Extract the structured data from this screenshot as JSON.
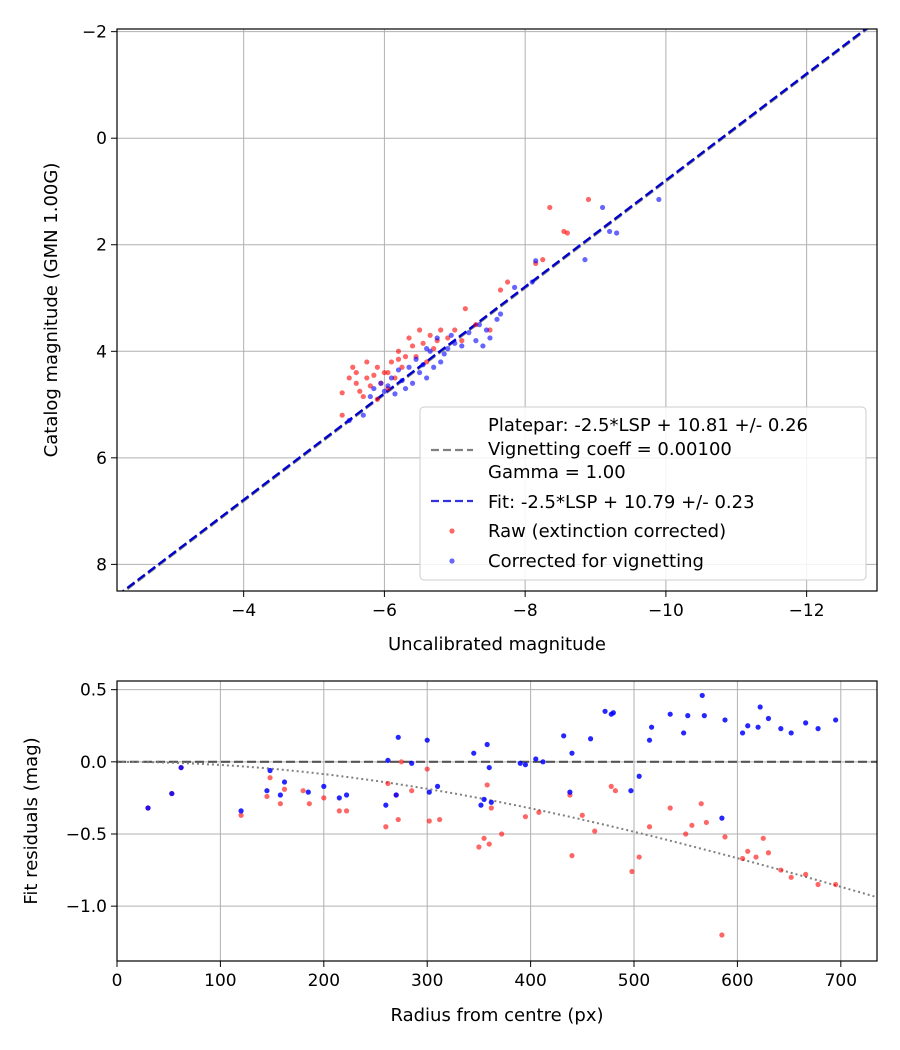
{
  "chart_data": [
    {
      "type": "scatter",
      "title": "",
      "xlabel": "Uncalibrated magnitude",
      "ylabel": "Catalog magnitude (GMN 1.00G)",
      "xlim": [
        -2.2,
        -13.0
      ],
      "ylim": [
        8.5,
        -2.05
      ],
      "x_inverted": true,
      "y_inverted": true,
      "xticks": [
        -4,
        -6,
        -8,
        -10,
        -12
      ],
      "yticks": [
        -2,
        0,
        2,
        4,
        6,
        8
      ],
      "xtick_labels": [
        "−4",
        "−6",
        "−8",
        "−10",
        "−12"
      ],
      "ytick_labels": [
        "−2",
        "0",
        "2",
        "4",
        "6",
        "8"
      ],
      "grid": true,
      "legend_position": "lower-right",
      "legend": {
        "platepar_line1": "Platepar: -2.5*LSP + 10.81 +/- 0.26",
        "platepar_line2": "Vignetting coeff = 0.00100",
        "platepar_line3": "Gamma = 1.00",
        "fit_label": "Fit: -2.5*LSP + 10.79 +/- 0.23",
        "raw_label": "Raw (extinction corrected)",
        "corrected_label": "Corrected for vignetting"
      },
      "colors": {
        "raw": "#ff0000",
        "corrected": "#0000ff",
        "fit": "#0000cc",
        "platepar": "#808080"
      },
      "lines": {
        "platepar": {
          "slope": 1,
          "intercept": 10.81,
          "style": "dashed"
        },
        "fit": {
          "slope": 1,
          "intercept": 10.79,
          "style": "dashed"
        }
      },
      "series": [
        {
          "name": "Raw (extinction corrected)",
          "points": [
            [
              -5.4,
              4.78
            ],
            [
              -5.5,
              4.5
            ],
            [
              -5.55,
              4.3
            ],
            [
              -5.6,
              4.4
            ],
            [
              -5.6,
              4.6
            ],
            [
              -5.65,
              4.75
            ],
            [
              -5.7,
              4.85
            ],
            [
              -5.75,
              4.5
            ],
            [
              -5.75,
              4.2
            ],
            [
              -5.8,
              4.65
            ],
            [
              -5.85,
              4.45
            ],
            [
              -5.9,
              4.3
            ],
            [
              -5.9,
              4.9
            ],
            [
              -5.95,
              4.6
            ],
            [
              -6.0,
              4.4
            ],
            [
              -6.05,
              4.7
            ],
            [
              -6.1,
              4.2
            ],
            [
              -6.15,
              4.5
            ],
            [
              -6.2,
              4.0
            ],
            [
              -6.25,
              4.3
            ],
            [
              -6.3,
              4.1
            ],
            [
              -6.35,
              3.75
            ],
            [
              -6.4,
              3.9
            ],
            [
              -6.45,
              4.1
            ],
            [
              -6.5,
              3.6
            ],
            [
              -6.55,
              3.85
            ],
            [
              -6.6,
              4.2
            ],
            [
              -6.65,
              3.7
            ],
            [
              -6.7,
              3.95
            ],
            [
              -6.75,
              3.8
            ],
            [
              -6.8,
              3.6
            ],
            [
              -6.9,
              3.75
            ],
            [
              -7.0,
              3.6
            ],
            [
              -7.1,
              3.8
            ],
            [
              -7.15,
              3.2
            ],
            [
              -7.3,
              3.5
            ],
            [
              -7.5,
              3.6
            ],
            [
              -7.65,
              2.85
            ],
            [
              -7.75,
              2.7
            ],
            [
              -8.15,
              2.35
            ],
            [
              -8.25,
              2.28
            ],
            [
              -8.35,
              1.3
            ],
            [
              -8.55,
              1.75
            ],
            [
              -8.6,
              1.78
            ],
            [
              -8.9,
              1.15
            ],
            [
              -6.05,
              4.4
            ],
            [
              -5.4,
              5.2
            ],
            [
              -6.2,
              4.15
            ]
          ]
        },
        {
          "name": "Corrected for vignetting",
          "points": [
            [
              -5.5,
              5.3
            ],
            [
              -5.7,
              5.2
            ],
            [
              -5.8,
              4.85
            ],
            [
              -5.85,
              4.7
            ],
            [
              -5.95,
              4.6
            ],
            [
              -6.0,
              4.75
            ],
            [
              -6.05,
              4.65
            ],
            [
              -6.1,
              4.5
            ],
            [
              -6.15,
              4.8
            ],
            [
              -6.2,
              4.35
            ],
            [
              -6.25,
              4.55
            ],
            [
              -6.3,
              4.7
            ],
            [
              -6.35,
              4.3
            ],
            [
              -6.4,
              4.6
            ],
            [
              -6.45,
              4.15
            ],
            [
              -6.5,
              4.4
            ],
            [
              -6.55,
              4.25
            ],
            [
              -6.6,
              4.5
            ],
            [
              -6.65,
              4.0
            ],
            [
              -6.7,
              4.3
            ],
            [
              -6.75,
              3.75
            ],
            [
              -6.8,
              4.2
            ],
            [
              -6.85,
              4.05
            ],
            [
              -6.9,
              3.95
            ],
            [
              -6.95,
              3.7
            ],
            [
              -7.0,
              3.85
            ],
            [
              -7.1,
              3.9
            ],
            [
              -7.2,
              3.65
            ],
            [
              -7.3,
              3.8
            ],
            [
              -7.35,
              3.5
            ],
            [
              -7.45,
              3.6
            ],
            [
              -7.5,
              3.75
            ],
            [
              -7.6,
              3.4
            ],
            [
              -7.65,
              3.3
            ],
            [
              -7.85,
              2.8
            ],
            [
              -8.1,
              2.7
            ],
            [
              -8.15,
              2.3
            ],
            [
              -8.85,
              2.28
            ],
            [
              -9.1,
              1.3
            ],
            [
              -9.2,
              1.75
            ],
            [
              -9.3,
              1.78
            ],
            [
              -9.9,
              1.15
            ],
            [
              -7.4,
              3.9
            ],
            [
              -6.6,
              3.95
            ]
          ]
        }
      ]
    },
    {
      "type": "scatter",
      "title": "",
      "xlabel": "Radius from centre (px)",
      "ylabel": "Fit residuals (mag)",
      "xlim": [
        0,
        735
      ],
      "ylim": [
        -1.38,
        0.56
      ],
      "xticks": [
        0,
        100,
        200,
        300,
        400,
        500,
        600,
        700
      ],
      "yticks": [
        0.5,
        0.0,
        -0.5,
        -1.0
      ],
      "xtick_labels": [
        "0",
        "100",
        "200",
        "300",
        "400",
        "500",
        "600",
        "700"
      ],
      "ytick_labels": [
        "0.5",
        "0.0",
        "−0.5",
        "−1.0"
      ],
      "grid": true,
      "reference_line": {
        "y": 0.0,
        "style": "dashed",
        "color": "#555555"
      },
      "vignetting_curve": {
        "coeff": 0.001,
        "style": "dotted",
        "color": "#808080"
      },
      "series": [
        {
          "name": "Raw",
          "points": [
            [
              30,
              -0.32
            ],
            [
              53,
              -0.22
            ],
            [
              62,
              -0.04
            ],
            [
              120,
              -0.37
            ],
            [
              145,
              -0.24
            ],
            [
              148,
              -0.11
            ],
            [
              158,
              -0.29
            ],
            [
              162,
              -0.19
            ],
            [
              180,
              -0.2
            ],
            [
              186,
              -0.29
            ],
            [
              200,
              -0.25
            ],
            [
              215,
              -0.34
            ],
            [
              222,
              -0.34
            ],
            [
              260,
              -0.45
            ],
            [
              262,
              -0.15
            ],
            [
              270,
              -0.23
            ],
            [
              272,
              -0.4
            ],
            [
              275,
              0.0
            ],
            [
              285,
              -0.2
            ],
            [
              300,
              -0.05
            ],
            [
              302,
              -0.41
            ],
            [
              312,
              -0.4
            ],
            [
              350,
              -0.59
            ],
            [
              355,
              -0.53
            ],
            [
              358,
              -0.16
            ],
            [
              360,
              -0.57
            ],
            [
              362,
              -0.32
            ],
            [
              372,
              -0.5
            ],
            [
              395,
              -0.38
            ],
            [
              408,
              -0.35
            ],
            [
              438,
              -0.23
            ],
            [
              440,
              -0.65
            ],
            [
              450,
              -0.37
            ],
            [
              462,
              -0.48
            ],
            [
              478,
              -0.17
            ],
            [
              482,
              -0.2
            ],
            [
              498,
              -0.76
            ],
            [
              505,
              -0.66
            ],
            [
              515,
              -0.45
            ],
            [
              535,
              -0.32
            ],
            [
              550,
              -0.5
            ],
            [
              556,
              -0.44
            ],
            [
              565,
              -0.29
            ],
            [
              570,
              -0.42
            ],
            [
              585,
              -1.2
            ],
            [
              588,
              -0.52
            ],
            [
              605,
              -0.67
            ],
            [
              610,
              -0.62
            ],
            [
              618,
              -0.66
            ],
            [
              625,
              -0.53
            ],
            [
              630,
              -0.63
            ],
            [
              642,
              -0.75
            ],
            [
              652,
              -0.8
            ],
            [
              666,
              -0.78
            ],
            [
              678,
              -0.85
            ],
            [
              695,
              -0.85
            ]
          ]
        },
        {
          "name": "Corrected",
          "points": [
            [
              30,
              -0.32
            ],
            [
              53,
              -0.22
            ],
            [
              62,
              -0.04
            ],
            [
              120,
              -0.34
            ],
            [
              145,
              -0.2
            ],
            [
              148,
              -0.06
            ],
            [
              158,
              -0.23
            ],
            [
              162,
              -0.14
            ],
            [
              185,
              -0.21
            ],
            [
              200,
              -0.17
            ],
            [
              215,
              -0.25
            ],
            [
              222,
              -0.23
            ],
            [
              260,
              -0.3
            ],
            [
              262,
              0.01
            ],
            [
              270,
              -0.23
            ],
            [
              272,
              0.17
            ],
            [
              285,
              -0.01
            ],
            [
              300,
              0.15
            ],
            [
              302,
              -0.21
            ],
            [
              310,
              -0.17
            ],
            [
              345,
              0.06
            ],
            [
              352,
              -0.3
            ],
            [
              355,
              -0.26
            ],
            [
              358,
              0.12
            ],
            [
              360,
              -0.04
            ],
            [
              362,
              -0.28
            ],
            [
              390,
              -0.01
            ],
            [
              395,
              -0.02
            ],
            [
              405,
              0.02
            ],
            [
              412,
              0.0
            ],
            [
              432,
              0.18
            ],
            [
              438,
              -0.21
            ],
            [
              440,
              0.06
            ],
            [
              458,
              0.16
            ],
            [
              472,
              0.35
            ],
            [
              478,
              0.33
            ],
            [
              480,
              0.34
            ],
            [
              497,
              -0.2
            ],
            [
              505,
              -0.1
            ],
            [
              515,
              0.15
            ],
            [
              517,
              0.24
            ],
            [
              535,
              0.33
            ],
            [
              548,
              0.2
            ],
            [
              552,
              0.32
            ],
            [
              566,
              0.46
            ],
            [
              568,
              0.32
            ],
            [
              585,
              -0.39
            ],
            [
              588,
              0.29
            ],
            [
              605,
              0.2
            ],
            [
              610,
              0.25
            ],
            [
              620,
              0.24
            ],
            [
              622,
              0.38
            ],
            [
              630,
              0.3
            ],
            [
              642,
              0.23
            ],
            [
              652,
              0.2
            ],
            [
              666,
              0.27
            ],
            [
              678,
              0.23
            ],
            [
              695,
              0.29
            ]
          ]
        }
      ]
    }
  ]
}
